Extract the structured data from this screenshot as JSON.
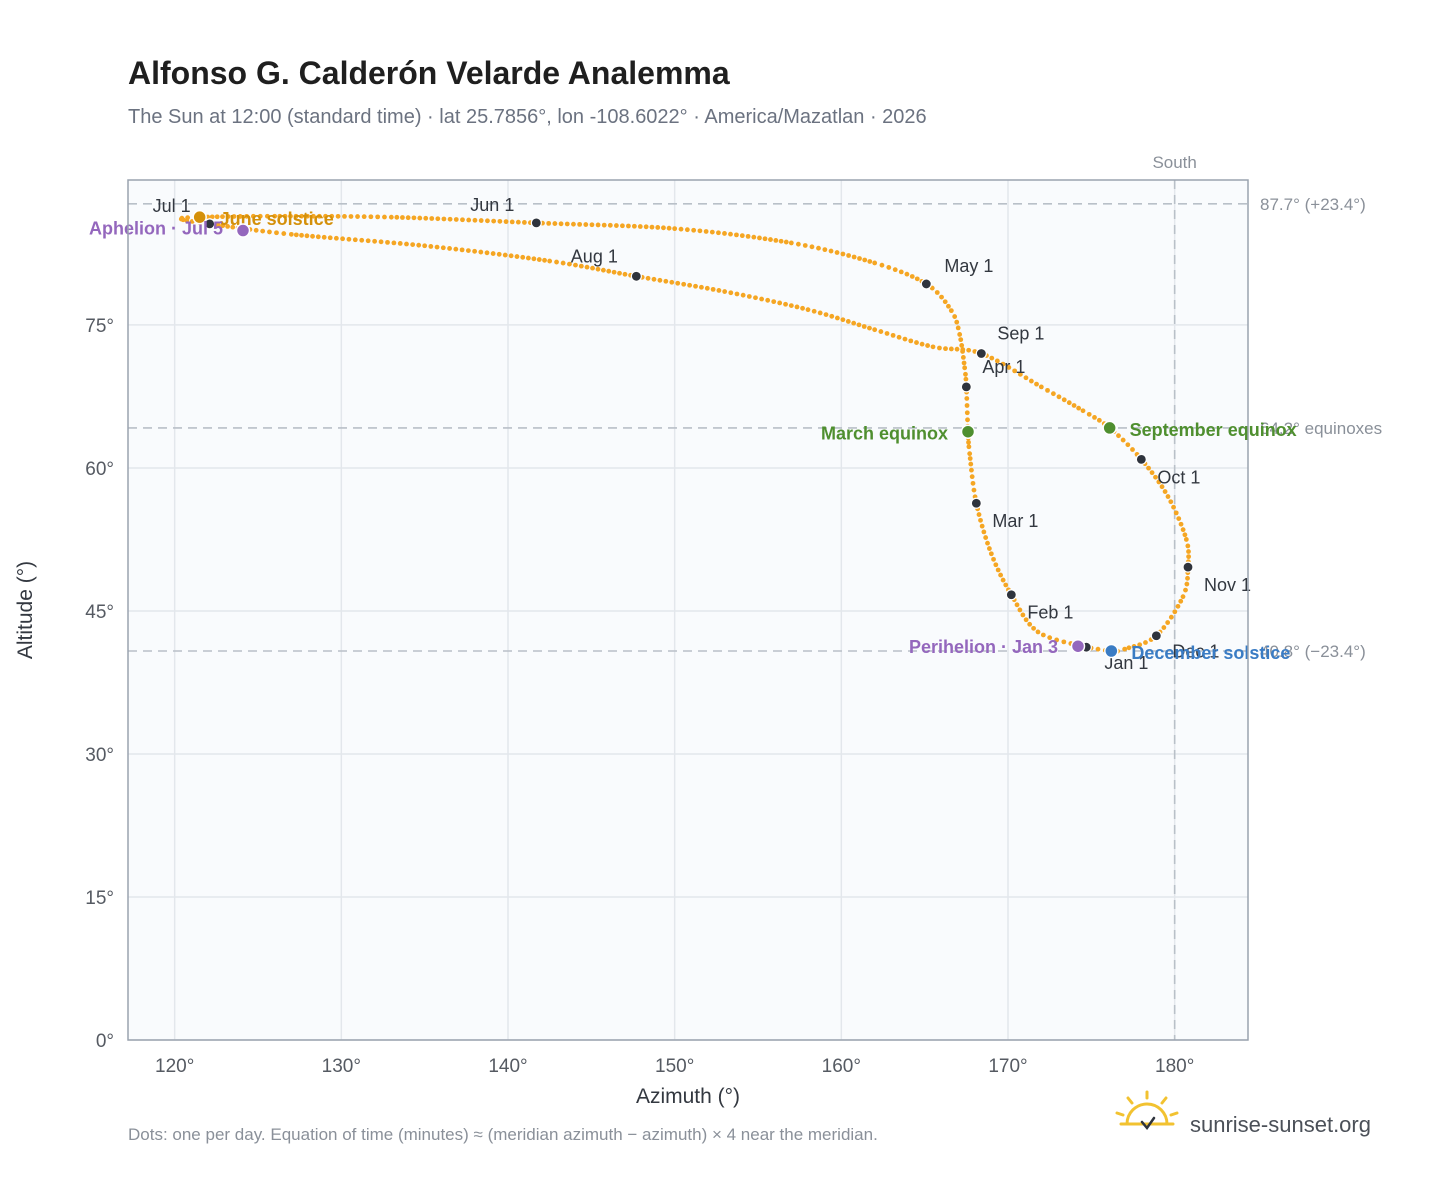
{
  "title": "Alfonso G. Calderón Velarde Analemma",
  "subtitle": "The Sun at 12:00 (standard time) · lat 25.7856°, lon -108.6022° · America/Mazatlan · 2026",
  "footnote": "Dots: one per day. Equation of time (minutes) ≈ (meridian azimuth − azimuth) × 4 near the meridian.",
  "brand": "sunrise-sunset.org",
  "colors": {
    "curve": "#f5a623",
    "month_dot": "#2f343d",
    "solstice_june": "#d4900a",
    "solstice_december": "#3a7cc4",
    "equinox": "#4f8f2f",
    "apsis": "#9467bd",
    "grid": "#e3e7ec",
    "plot_bg": "#f9fbfd",
    "frame": "#9aa3af",
    "ref_line": "#b9c0c8"
  },
  "chart_data": {
    "type": "scatter",
    "xlabel": "Azimuth (°)",
    "ylabel": "Altitude (°)",
    "xlim": [
      117.2,
      184.4
    ],
    "ylim": [
      0,
      90.2
    ],
    "x_ticks": [
      "120°",
      "130°",
      "140°",
      "150°",
      "160°",
      "170°",
      "180°"
    ],
    "y_ticks": [
      "0°",
      "15°",
      "30°",
      "45°",
      "60°",
      "75°"
    ],
    "grid": true,
    "south_label": "South",
    "south_azimuth": 180,
    "reference_lines": [
      {
        "altitude": 87.7,
        "label": "87.7° (+23.4°)"
      },
      {
        "altitude": 64.2,
        "label": "64.2° equinoxes"
      },
      {
        "altitude": 40.8,
        "label": "40.8° (−23.4°)"
      }
    ],
    "series": [
      {
        "points": [
          [
            174.7,
            41.2
          ],
          [
            171.8,
            42.8
          ],
          [
            170.2,
            46.7
          ],
          [
            169.0,
            51.0
          ],
          [
            168.1,
            56.3
          ],
          [
            167.7,
            61.5
          ],
          [
            167.6,
            63.8
          ],
          [
            167.5,
            68.5
          ],
          [
            167.4,
            70.5
          ],
          [
            167.1,
            74.0
          ],
          [
            166.6,
            76.5
          ],
          [
            165.1,
            79.3
          ],
          [
            162.0,
            81.5
          ],
          [
            157.0,
            83.6
          ],
          [
            150.0,
            85.1
          ],
          [
            141.7,
            85.7
          ],
          [
            133.0,
            86.3
          ],
          [
            126.0,
            86.4
          ],
          [
            121.5,
            86.3
          ],
          [
            120.4,
            86.1
          ],
          [
            122.1,
            85.6
          ],
          [
            127.0,
            84.5
          ],
          [
            135.0,
            83.3
          ],
          [
            142.5,
            81.7
          ],
          [
            147.7,
            80.1
          ],
          [
            153.0,
            78.5
          ],
          [
            158.0,
            76.6
          ],
          [
            162.0,
            74.5
          ],
          [
            165.5,
            72.7
          ],
          [
            168.4,
            72.0
          ],
          [
            172.0,
            68.5
          ],
          [
            174.5,
            66.0
          ],
          [
            176.1,
            64.2
          ],
          [
            178.0,
            60.9
          ],
          [
            179.6,
            57.0
          ],
          [
            180.7,
            52.5
          ],
          [
            180.8,
            49.6
          ],
          [
            180.5,
            46.5
          ],
          [
            178.9,
            42.4
          ],
          [
            177.0,
            41.0
          ],
          [
            176.2,
            40.8
          ],
          [
            174.7,
            41.2
          ]
        ]
      }
    ],
    "month_markers": [
      {
        "label": "Jan 1",
        "az": 174.7,
        "alt": 41.2
      },
      {
        "label": "Feb 1",
        "az": 170.2,
        "alt": 46.7
      },
      {
        "label": "Mar 1",
        "az": 168.1,
        "alt": 56.3
      },
      {
        "label": "Apr 1",
        "az": 167.5,
        "alt": 68.5
      },
      {
        "label": "May 1",
        "az": 165.1,
        "alt": 79.3
      },
      {
        "label": "Jun 1",
        "az": 141.7,
        "alt": 85.7
      },
      {
        "label": "Jul 1",
        "az": 122.1,
        "alt": 85.6
      },
      {
        "label": "Aug 1",
        "az": 147.7,
        "alt": 80.1
      },
      {
        "label": "Sep 1",
        "az": 168.4,
        "alt": 72.0
      },
      {
        "label": "Oct 1",
        "az": 178.0,
        "alt": 60.9
      },
      {
        "label": "Nov 1",
        "az": 180.8,
        "alt": 49.6
      },
      {
        "label": "Dec 1",
        "az": 178.9,
        "alt": 42.4
      }
    ],
    "events": [
      {
        "label": "June solstice",
        "az": 121.5,
        "alt": 86.3,
        "color_key": "solstice_june"
      },
      {
        "label": "December solstice",
        "az": 176.2,
        "alt": 40.8,
        "color_key": "solstice_december"
      },
      {
        "label": "March equinox",
        "az": 167.6,
        "alt": 63.8,
        "color_key": "equinox"
      },
      {
        "label": "September equinox",
        "az": 176.1,
        "alt": 64.2,
        "color_key": "equinox"
      },
      {
        "label": "Aphelion · Jul 5",
        "az": 124.1,
        "alt": 84.9,
        "color_key": "apsis"
      },
      {
        "label": "Perihelion · Jan 3",
        "az": 174.2,
        "alt": 41.3,
        "color_key": "apsis"
      }
    ]
  }
}
